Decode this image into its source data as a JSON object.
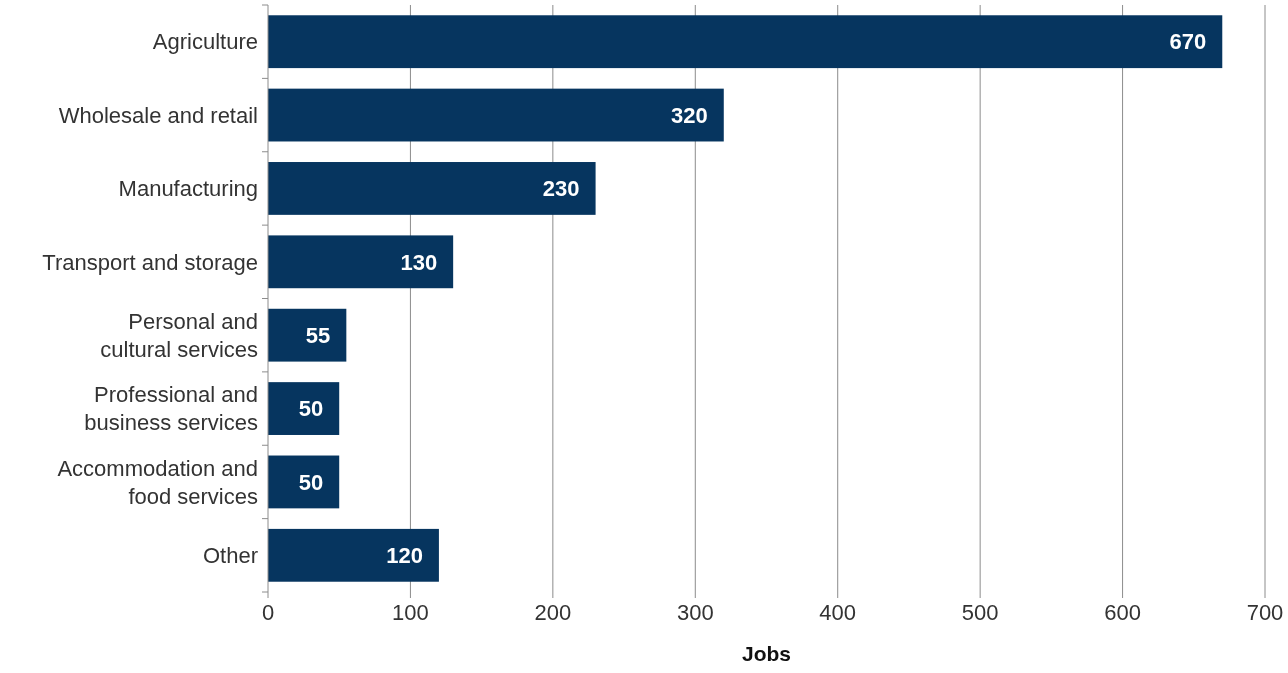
{
  "chart_data": {
    "type": "bar",
    "orientation": "horizontal",
    "xlabel": "Jobs",
    "categories": [
      "Agriculture",
      "Wholesale and retail",
      "Manufacturing",
      "Transport and storage",
      "Personal and cultural services",
      "Professional and business services",
      "Accommodation and food services",
      "Other"
    ],
    "values": [
      670,
      320,
      230,
      130,
      55,
      50,
      50,
      120
    ],
    "color": "#06355f",
    "xlim": [
      0,
      700
    ],
    "xticks": [
      0,
      100,
      200,
      300,
      400,
      500,
      600,
      700
    ],
    "grid": "x",
    "data_labels": true
  }
}
